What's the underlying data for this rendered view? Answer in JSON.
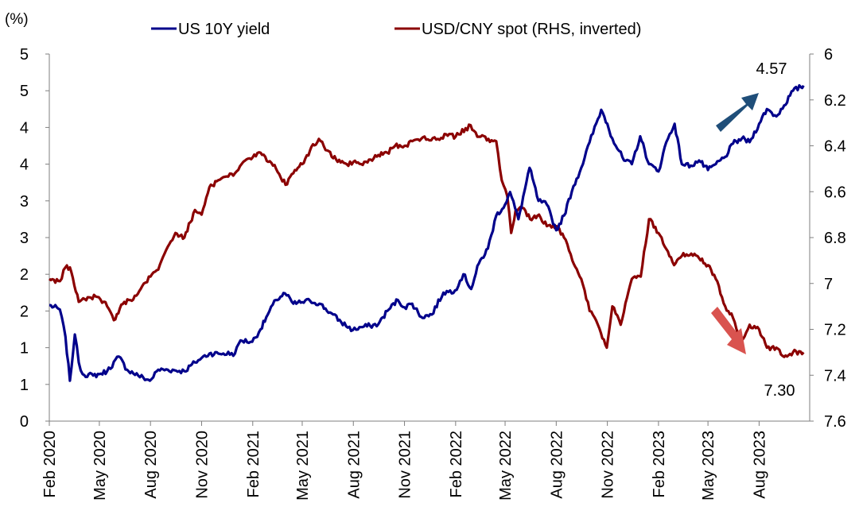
{
  "chart_data": {
    "type": "line",
    "ylabel_left": "(%)",
    "legend_position": "top",
    "grid": false,
    "y_left": {
      "range": [
        0,
        5
      ],
      "tick_values": [
        0,
        0.5,
        1,
        1.5,
        2,
        2.5,
        3,
        3.5,
        4,
        4.5,
        5
      ],
      "tick_labels": [
        "0",
        "1",
        "1",
        "2",
        "2",
        "3",
        "3",
        "4",
        "4",
        "5",
        "5"
      ]
    },
    "y_right": {
      "range": [
        6.0,
        7.6
      ],
      "inverted": true,
      "tick_values": [
        6.0,
        6.2,
        6.4,
        6.6,
        6.8,
        7.0,
        7.2,
        7.4,
        7.6
      ],
      "tick_labels": [
        "6",
        "6.2",
        "6.4",
        "6.6",
        "6.8",
        "7",
        "7.2",
        "7.4",
        "7.6"
      ]
    },
    "x_axis": {
      "range": [
        "2020-02-01",
        "2023-10-31"
      ],
      "tick_dates": [
        "2020-02-01",
        "2020-05-01",
        "2020-08-01",
        "2020-11-01",
        "2021-02-01",
        "2021-05-01",
        "2021-08-01",
        "2021-11-01",
        "2022-02-01",
        "2022-05-01",
        "2022-08-01",
        "2022-11-01",
        "2023-02-01",
        "2023-05-01",
        "2023-08-01"
      ],
      "tick_labels": [
        "Feb 2020",
        "May 2020",
        "Aug 2020",
        "Nov 2020",
        "Feb 2021",
        "May 2021",
        "Aug 2021",
        "Nov 2021",
        "Feb 2022",
        "May 2022",
        "Aug 2022",
        "Nov 2022",
        "Feb 2023",
        "May 2023",
        "Aug 2023"
      ]
    },
    "series": [
      {
        "name": "US 10Y yield",
        "axis": "left",
        "color": "#00008B",
        "points": [
          [
            "2020-02-01",
            1.58
          ],
          [
            "2020-02-20",
            1.52
          ],
          [
            "2020-03-01",
            1.15
          ],
          [
            "2020-03-09",
            0.55
          ],
          [
            "2020-03-18",
            1.18
          ],
          [
            "2020-03-25",
            0.8
          ],
          [
            "2020-04-01",
            0.64
          ],
          [
            "2020-04-20",
            0.62
          ],
          [
            "2020-05-01",
            0.64
          ],
          [
            "2020-05-15",
            0.68
          ],
          [
            "2020-06-05",
            0.88
          ],
          [
            "2020-06-20",
            0.7
          ],
          [
            "2020-07-10",
            0.62
          ],
          [
            "2020-07-31",
            0.55
          ],
          [
            "2020-08-15",
            0.7
          ],
          [
            "2020-09-01",
            0.7
          ],
          [
            "2020-10-01",
            0.68
          ],
          [
            "2020-10-20",
            0.8
          ],
          [
            "2020-11-01",
            0.86
          ],
          [
            "2020-11-15",
            0.92
          ],
          [
            "2020-12-01",
            0.92
          ],
          [
            "2020-12-31",
            0.92
          ],
          [
            "2021-01-10",
            1.1
          ],
          [
            "2021-01-31",
            1.08
          ],
          [
            "2021-02-15",
            1.25
          ],
          [
            "2021-02-28",
            1.45
          ],
          [
            "2021-03-15",
            1.65
          ],
          [
            "2021-03-31",
            1.74
          ],
          [
            "2021-04-15",
            1.6
          ],
          [
            "2021-05-01",
            1.62
          ],
          [
            "2021-05-15",
            1.64
          ],
          [
            "2021-06-01",
            1.6
          ],
          [
            "2021-06-20",
            1.48
          ],
          [
            "2021-07-10",
            1.35
          ],
          [
            "2021-07-31",
            1.24
          ],
          [
            "2021-08-15",
            1.28
          ],
          [
            "2021-08-31",
            1.3
          ],
          [
            "2021-09-15",
            1.32
          ],
          [
            "2021-10-01",
            1.5
          ],
          [
            "2021-10-20",
            1.65
          ],
          [
            "2021-11-01",
            1.55
          ],
          [
            "2021-11-15",
            1.6
          ],
          [
            "2021-12-01",
            1.42
          ],
          [
            "2021-12-20",
            1.45
          ],
          [
            "2022-01-10",
            1.75
          ],
          [
            "2022-01-31",
            1.78
          ],
          [
            "2022-02-15",
            2.0
          ],
          [
            "2022-03-01",
            1.8
          ],
          [
            "2022-03-15",
            2.15
          ],
          [
            "2022-03-31",
            2.35
          ],
          [
            "2022-04-15",
            2.8
          ],
          [
            "2022-05-01",
            2.95
          ],
          [
            "2022-05-10",
            3.12
          ],
          [
            "2022-05-25",
            2.75
          ],
          [
            "2022-06-14",
            3.45
          ],
          [
            "2022-06-30",
            3.0
          ],
          [
            "2022-07-15",
            2.95
          ],
          [
            "2022-08-01",
            2.6
          ],
          [
            "2022-08-15",
            2.8
          ],
          [
            "2022-09-01",
            3.2
          ],
          [
            "2022-09-15",
            3.45
          ],
          [
            "2022-09-30",
            3.8
          ],
          [
            "2022-10-21",
            4.24
          ],
          [
            "2022-11-01",
            4.05
          ],
          [
            "2022-11-10",
            3.85
          ],
          [
            "2022-12-01",
            3.55
          ],
          [
            "2022-12-15",
            3.5
          ],
          [
            "2022-12-30",
            3.88
          ],
          [
            "2023-01-15",
            3.5
          ],
          [
            "2023-02-01",
            3.4
          ],
          [
            "2023-02-15",
            3.8
          ],
          [
            "2023-03-02",
            4.05
          ],
          [
            "2023-03-15",
            3.5
          ],
          [
            "2023-03-31",
            3.48
          ],
          [
            "2023-04-15",
            3.55
          ],
          [
            "2023-05-01",
            3.42
          ],
          [
            "2023-05-15",
            3.5
          ],
          [
            "2023-06-01",
            3.6
          ],
          [
            "2023-06-15",
            3.78
          ],
          [
            "2023-07-01",
            3.85
          ],
          [
            "2023-07-15",
            3.8
          ],
          [
            "2023-08-01",
            4.05
          ],
          [
            "2023-08-15",
            4.25
          ],
          [
            "2023-09-01",
            4.15
          ],
          [
            "2023-09-15",
            4.3
          ],
          [
            "2023-10-01",
            4.5
          ],
          [
            "2023-10-15",
            4.55
          ],
          [
            "2023-10-20",
            4.57
          ]
        ]
      },
      {
        "name": "USD/CNY spot (RHS, inverted)",
        "axis": "right",
        "color": "#8B0000",
        "points": [
          [
            "2020-02-01",
            6.98
          ],
          [
            "2020-02-20",
            6.99
          ],
          [
            "2020-03-01",
            6.93
          ],
          [
            "2020-03-09",
            6.93
          ],
          [
            "2020-03-25",
            7.08
          ],
          [
            "2020-04-10",
            7.06
          ],
          [
            "2020-04-30",
            7.06
          ],
          [
            "2020-05-15",
            7.1
          ],
          [
            "2020-05-27",
            7.16
          ],
          [
            "2020-06-15",
            7.08
          ],
          [
            "2020-07-01",
            7.07
          ],
          [
            "2020-07-20",
            7.0
          ],
          [
            "2020-08-01",
            6.97
          ],
          [
            "2020-08-15",
            6.94
          ],
          [
            "2020-09-01",
            6.84
          ],
          [
            "2020-09-15",
            6.78
          ],
          [
            "2020-10-01",
            6.8
          ],
          [
            "2020-10-20",
            6.68
          ],
          [
            "2020-11-01",
            6.7
          ],
          [
            "2020-11-15",
            6.58
          ],
          [
            "2020-12-01",
            6.55
          ],
          [
            "2020-12-31",
            6.52
          ],
          [
            "2021-01-15",
            6.47
          ],
          [
            "2021-02-01",
            6.45
          ],
          [
            "2021-02-15",
            6.43
          ],
          [
            "2021-03-01",
            6.47
          ],
          [
            "2021-03-15",
            6.5
          ],
          [
            "2021-04-01",
            6.57
          ],
          [
            "2021-04-15",
            6.52
          ],
          [
            "2021-05-01",
            6.48
          ],
          [
            "2021-05-15",
            6.42
          ],
          [
            "2021-05-31",
            6.37
          ],
          [
            "2021-06-15",
            6.42
          ],
          [
            "2021-07-01",
            6.46
          ],
          [
            "2021-07-20",
            6.48
          ],
          [
            "2021-08-01",
            6.47
          ],
          [
            "2021-08-15",
            6.48
          ],
          [
            "2021-09-01",
            6.46
          ],
          [
            "2021-09-15",
            6.44
          ],
          [
            "2021-10-01",
            6.43
          ],
          [
            "2021-10-15",
            6.4
          ],
          [
            "2021-11-01",
            6.4
          ],
          [
            "2021-11-15",
            6.38
          ],
          [
            "2021-12-01",
            6.37
          ],
          [
            "2021-12-31",
            6.37
          ],
          [
            "2022-01-15",
            6.35
          ],
          [
            "2022-02-01",
            6.36
          ],
          [
            "2022-02-28",
            6.31
          ],
          [
            "2022-03-15",
            6.36
          ],
          [
            "2022-04-01",
            6.37
          ],
          [
            "2022-04-15",
            6.38
          ],
          [
            "2022-04-25",
            6.55
          ],
          [
            "2022-05-05",
            6.62
          ],
          [
            "2022-05-12",
            6.78
          ],
          [
            "2022-05-20",
            6.68
          ],
          [
            "2022-06-01",
            6.67
          ],
          [
            "2022-06-15",
            6.72
          ],
          [
            "2022-07-01",
            6.7
          ],
          [
            "2022-07-15",
            6.75
          ],
          [
            "2022-08-01",
            6.75
          ],
          [
            "2022-08-15",
            6.8
          ],
          [
            "2022-08-30",
            6.9
          ],
          [
            "2022-09-15",
            6.98
          ],
          [
            "2022-09-30",
            7.12
          ],
          [
            "2022-10-15",
            7.18
          ],
          [
            "2022-10-31",
            7.28
          ],
          [
            "2022-11-10",
            7.1
          ],
          [
            "2022-11-25",
            7.18
          ],
          [
            "2022-12-15",
            6.98
          ],
          [
            "2022-12-31",
            6.97
          ],
          [
            "2023-01-15",
            6.72
          ],
          [
            "2023-02-01",
            6.78
          ],
          [
            "2023-02-15",
            6.85
          ],
          [
            "2023-03-01",
            6.92
          ],
          [
            "2023-03-15",
            6.88
          ],
          [
            "2023-04-01",
            6.87
          ],
          [
            "2023-04-15",
            6.89
          ],
          [
            "2023-05-01",
            6.92
          ],
          [
            "2023-05-15",
            6.98
          ],
          [
            "2023-06-01",
            7.1
          ],
          [
            "2023-06-15",
            7.15
          ],
          [
            "2023-06-30",
            7.25
          ],
          [
            "2023-07-15",
            7.18
          ],
          [
            "2023-08-01",
            7.2
          ],
          [
            "2023-08-15",
            7.28
          ],
          [
            "2023-09-01",
            7.28
          ],
          [
            "2023-09-15",
            7.32
          ],
          [
            "2023-10-01",
            7.3
          ],
          [
            "2023-10-20",
            7.3
          ]
        ]
      }
    ],
    "end_labels": {
      "yield": "4.57",
      "fx": "7.30"
    },
    "arrow_colors": {
      "up": "#1F4E79",
      "down": "#D9534F"
    }
  }
}
